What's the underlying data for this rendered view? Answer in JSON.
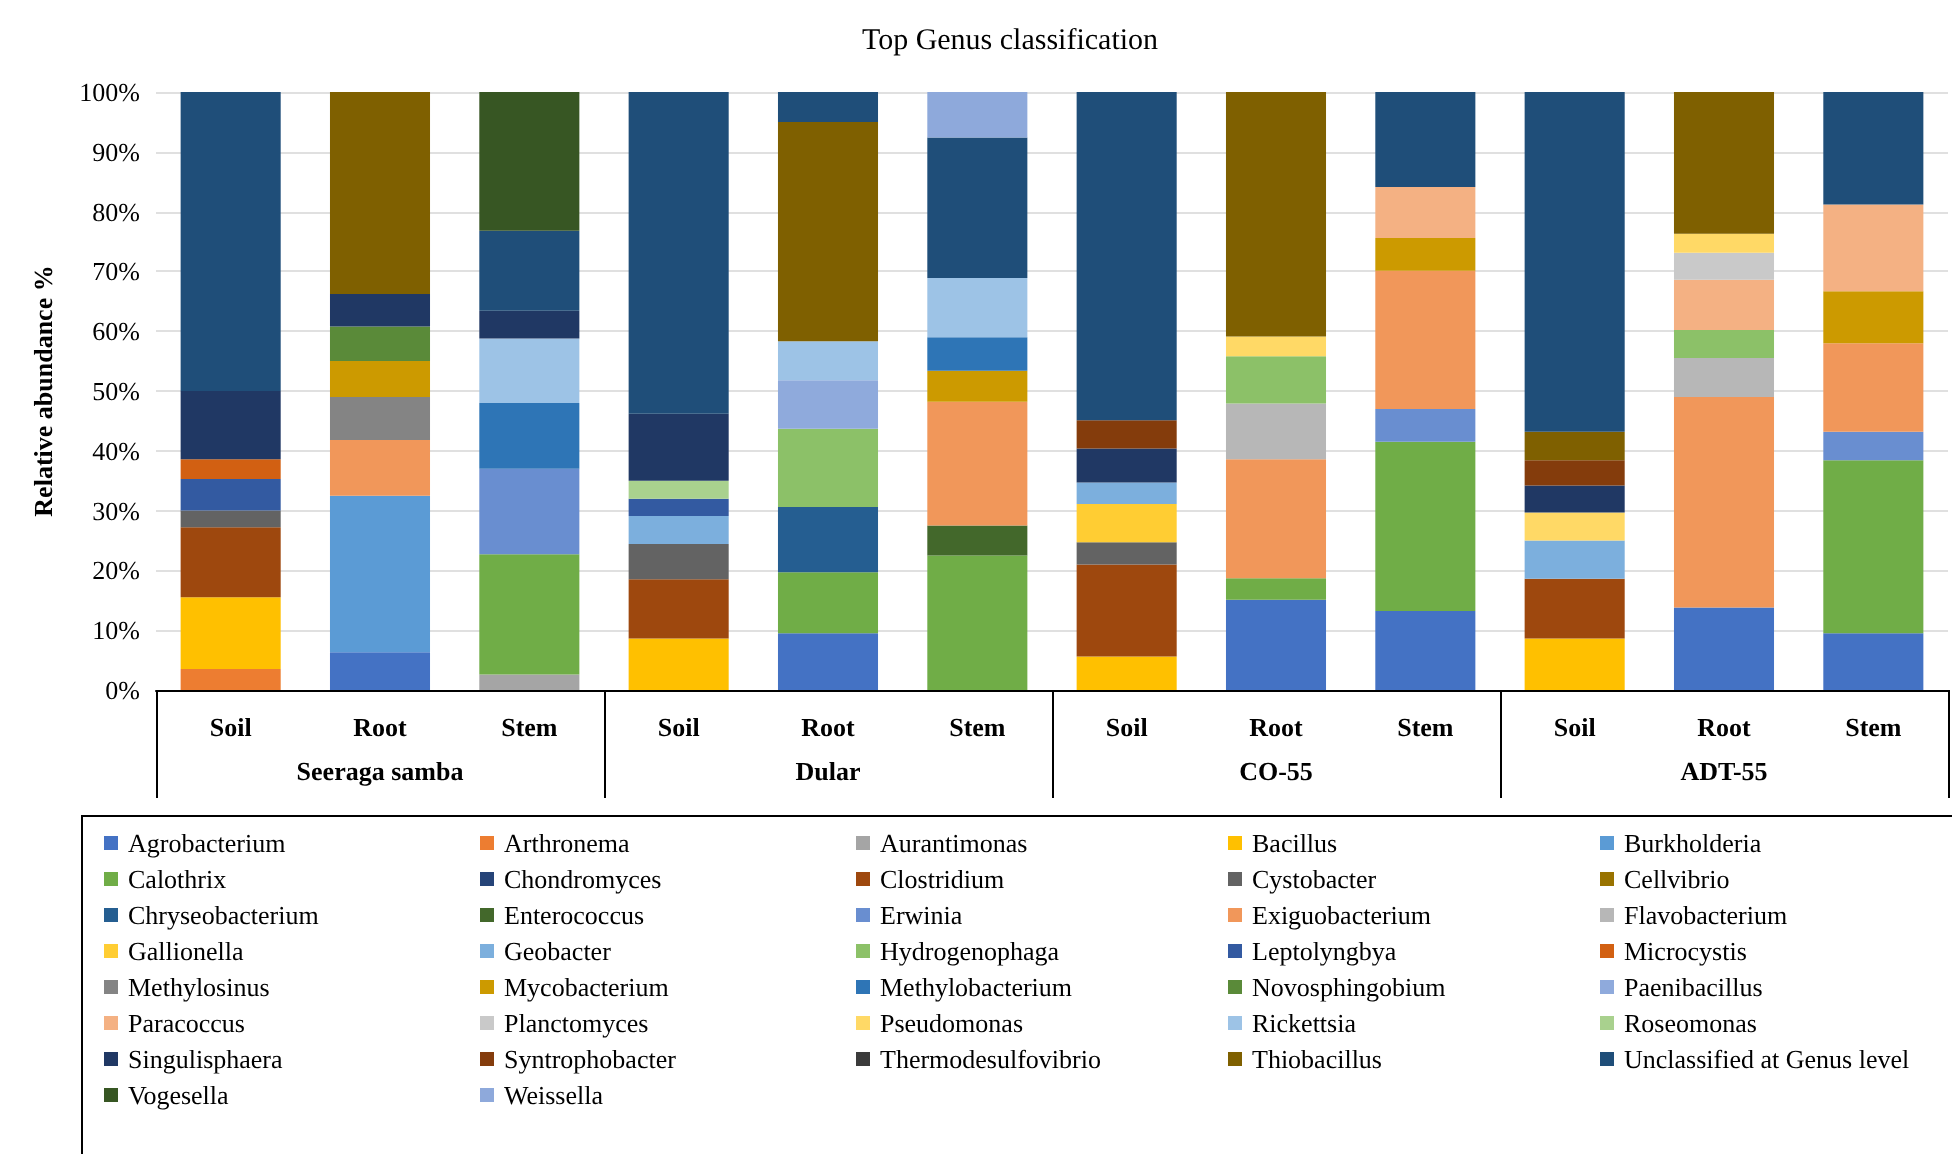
{
  "chart_data": {
    "type": "bar",
    "stacked": true,
    "title": "Top Genus classification",
    "ylabel": "Relative abundance %",
    "categories": [
      "Soil",
      "Root",
      "Stem",
      "Soil",
      "Root",
      "Stem",
      "Soil",
      "Root",
      "Stem",
      "Soil",
      "Root",
      "Stem"
    ],
    "annotations": [
      "Seeraga samba",
      "Dular",
      "CO-55",
      "ADT-55"
    ],
    "ylim": [
      0,
      100
    ],
    "yticks": [
      {
        "value": 0,
        "label": "0%"
      },
      {
        "value": 10,
        "label": "10%"
      },
      {
        "value": 20,
        "label": "20%"
      },
      {
        "value": 30,
        "label": "30%"
      },
      {
        "value": 40,
        "label": "40%"
      },
      {
        "value": 50,
        "label": "50%"
      },
      {
        "value": 60,
        "label": "60%"
      },
      {
        "value": 70,
        "label": "70%"
      },
      {
        "value": 80,
        "label": "80%"
      },
      {
        "value": 90,
        "label": "90%"
      },
      {
        "value": 100,
        "label": "100%"
      }
    ],
    "grid": "y",
    "legend": "bottom",
    "series": [
      {
        "name": "Agrobacterium",
        "color": "#4472c4",
        "values": [
          null,
          6.3,
          null,
          null,
          9.5,
          null,
          null,
          15.1,
          13.2,
          null,
          13.8,
          9.5
        ]
      },
      {
        "name": "Arthronema",
        "color": "#ed7d31",
        "values": [
          3.5,
          null,
          null,
          null,
          null,
          null,
          null,
          null,
          null,
          null,
          null,
          null
        ]
      },
      {
        "name": "Aurantimonas",
        "color": "#a5a5a5",
        "values": [
          null,
          null,
          2.6,
          null,
          null,
          null,
          null,
          null,
          null,
          null,
          null,
          null
        ]
      },
      {
        "name": "Bacillus",
        "color": "#ffc000",
        "values": [
          12,
          null,
          null,
          8.6,
          null,
          null,
          5.6,
          null,
          null,
          8.6,
          null,
          null
        ]
      },
      {
        "name": "Burkholderia",
        "color": "#5b9bd5",
        "values": [
          null,
          26.2,
          null,
          null,
          null,
          null,
          null,
          null,
          null,
          null,
          null,
          null
        ]
      },
      {
        "name": "Calothrix",
        "color": "#70ad47",
        "values": [
          null,
          null,
          20.1,
          null,
          10.2,
          22.5,
          null,
          3.6,
          28.3,
          null,
          null,
          28.9
        ]
      },
      {
        "name": "Chondromyces",
        "color": "#264478",
        "values": [
          null,
          null,
          null,
          null,
          null,
          null,
          null,
          null,
          null,
          null,
          null,
          null
        ]
      },
      {
        "name": "Clostridium",
        "color": "#9e480e",
        "values": [
          11.7,
          null,
          null,
          9.9,
          null,
          null,
          15.4,
          null,
          null,
          10,
          null,
          null
        ]
      },
      {
        "name": "Cystobacter",
        "color": "#636363",
        "values": [
          2.8,
          null,
          null,
          5.9,
          null,
          null,
          3.7,
          null,
          null,
          null,
          null,
          null
        ]
      },
      {
        "name": "Cellvibrio",
        "color": "#997300",
        "values": [
          null,
          null,
          null,
          null,
          null,
          null,
          null,
          null,
          null,
          null,
          null,
          null
        ]
      },
      {
        "name": "Chryseobacterium",
        "color": "#255e91",
        "values": [
          null,
          null,
          null,
          null,
          10.9,
          null,
          null,
          null,
          null,
          null,
          null,
          null
        ]
      },
      {
        "name": "Enterococcus",
        "color": "#43682b",
        "values": [
          null,
          null,
          null,
          null,
          null,
          5,
          null,
          null,
          null,
          null,
          null,
          null
        ]
      },
      {
        "name": "Erwinia",
        "color": "#698ed0",
        "values": [
          null,
          null,
          14.3,
          null,
          null,
          null,
          null,
          null,
          5.5,
          null,
          null,
          4.8
        ]
      },
      {
        "name": "Exiguobacterium",
        "color": "#f1975a",
        "values": [
          null,
          9.3,
          null,
          null,
          null,
          20.7,
          null,
          19.9,
          23.1,
          null,
          35.2,
          14.8
        ]
      },
      {
        "name": "Flavobacterium",
        "color": "#b7b7b7",
        "values": [
          null,
          null,
          null,
          null,
          null,
          null,
          null,
          9.3,
          null,
          null,
          6.5,
          null
        ]
      },
      {
        "name": "Gallionella",
        "color": "#ffcd33",
        "values": [
          null,
          null,
          null,
          null,
          null,
          null,
          6.4,
          null,
          null,
          null,
          null,
          null
        ]
      },
      {
        "name": "Geobacter",
        "color": "#7cafdd",
        "values": [
          null,
          null,
          null,
          4.7,
          null,
          null,
          3.6,
          null,
          null,
          6.4,
          null,
          null
        ]
      },
      {
        "name": "Hydrogenophaga",
        "color": "#8cc168",
        "values": [
          null,
          null,
          null,
          null,
          13.1,
          null,
          null,
          7.9,
          null,
          null,
          4.7,
          null
        ]
      },
      {
        "name": "Leptolyngbya",
        "color": "#335aa1",
        "values": [
          5.3,
          null,
          null,
          2.9,
          null,
          null,
          null,
          null,
          null,
          null,
          null,
          null
        ]
      },
      {
        "name": "Microcystis",
        "color": "#d26012",
        "values": [
          3.3,
          null,
          null,
          null,
          null,
          null,
          null,
          null,
          null,
          null,
          null,
          null
        ]
      },
      {
        "name": "Methylosinus",
        "color": "#848484",
        "values": [
          null,
          7.2,
          null,
          null,
          null,
          null,
          null,
          null,
          null,
          null,
          null,
          null
        ]
      },
      {
        "name": "Mycobacterium",
        "color": "#cc9a00",
        "values": [
          null,
          6,
          null,
          null,
          null,
          5.2,
          null,
          null,
          5.5,
          null,
          null,
          8.7
        ]
      },
      {
        "name": "Methylobacterium",
        "color": "#2e75b6",
        "values": [
          null,
          null,
          11,
          null,
          null,
          5.6,
          null,
          null,
          null,
          null,
          null,
          null
        ]
      },
      {
        "name": "Novosphingobium",
        "color": "#5a8a39",
        "values": [
          null,
          5.8,
          null,
          null,
          null,
          null,
          null,
          null,
          null,
          null,
          null,
          null
        ]
      },
      {
        "name": "Paenibacillus",
        "color": "#8faadc",
        "values": [
          null,
          null,
          null,
          null,
          8.1,
          null,
          null,
          null,
          null,
          null,
          null,
          null
        ]
      },
      {
        "name": "Paracoccus",
        "color": "#f4b183",
        "values": [
          null,
          null,
          null,
          null,
          null,
          null,
          null,
          null,
          8.5,
          null,
          8.4,
          14.5
        ]
      },
      {
        "name": "Planctomyces",
        "color": "#c9c9c9",
        "values": [
          null,
          null,
          null,
          null,
          null,
          null,
          null,
          null,
          null,
          null,
          4.5,
          null
        ]
      },
      {
        "name": "Pseudomonas",
        "color": "#ffd966",
        "values": [
          null,
          null,
          null,
          null,
          null,
          null,
          null,
          3.3,
          null,
          4.7,
          3.2,
          null
        ]
      },
      {
        "name": "Rickettsia",
        "color": "#9dc3e6",
        "values": [
          null,
          null,
          10.8,
          null,
          6.5,
          9.9,
          null,
          null,
          null,
          null,
          null,
          null
        ]
      },
      {
        "name": "Roseomonas",
        "color": "#a9d18e",
        "values": [
          null,
          null,
          null,
          3,
          null,
          null,
          null,
          null,
          null,
          null,
          null,
          null
        ]
      },
      {
        "name": "Singulisphaera",
        "color": "#203864",
        "values": [
          11.4,
          5.4,
          4.6,
          11.2,
          null,
          null,
          5.7,
          null,
          null,
          4.5,
          null,
          null
        ]
      },
      {
        "name": "Syntrophobacter",
        "color": "#843c0c",
        "values": [
          null,
          null,
          null,
          null,
          null,
          null,
          4.7,
          null,
          null,
          4.2,
          null,
          null
        ]
      },
      {
        "name": "Thermodesulfovibrio",
        "color": "#3b3b3b",
        "values": [
          null,
          null,
          null,
          null,
          null,
          null,
          null,
          null,
          null,
          null,
          null,
          null
        ]
      },
      {
        "name": "Thiobacillus",
        "color": "#7f6000",
        "values": [
          null,
          33.8,
          null,
          null,
          36.7,
          null,
          null,
          40.9,
          null,
          4.8,
          23.7,
          null
        ]
      },
      {
        "name": "Unclassified at Genus level",
        "color": "#1f4e79",
        "values": [
          50,
          null,
          13.4,
          53.8,
          5,
          23.5,
          54.9,
          null,
          15.9,
          56.8,
          null,
          18.8
        ]
      },
      {
        "name": "Vogesella",
        "color": "#375623",
        "values": [
          null,
          null,
          23.2,
          null,
          null,
          null,
          null,
          null,
          null,
          null,
          null,
          null
        ]
      },
      {
        "name": "Weissella",
        "color": "#8ea9db",
        "values": [
          null,
          null,
          null,
          null,
          null,
          7.6,
          null,
          null,
          null,
          null,
          null,
          null
        ]
      }
    ]
  }
}
